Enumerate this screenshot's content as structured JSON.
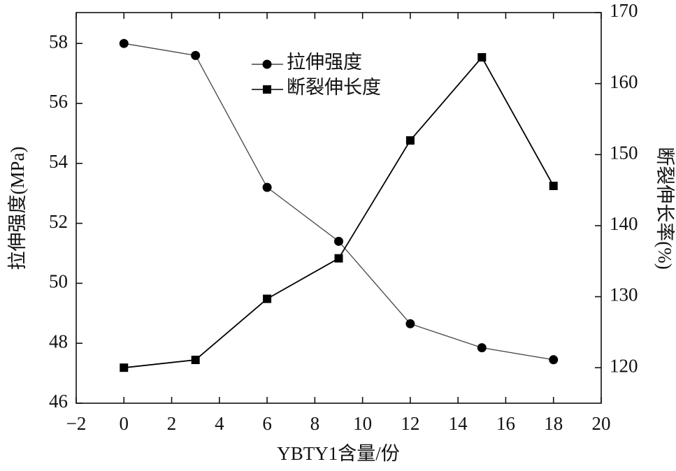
{
  "chart_data": {
    "type": "line",
    "x": [
      0,
      3,
      6,
      9,
      12,
      15,
      18
    ],
    "series": [
      {
        "name": "拉伸强度",
        "color": "#444444",
        "marker": "circle",
        "values": [
          58,
          57.6,
          53.2,
          51.4,
          48.65,
          47.85,
          47.45
        ]
      },
      {
        "name": "断裂伸长度",
        "color": "#000000",
        "marker": "square",
        "axis": "y2",
        "values": [
          120,
          121.1,
          129.7,
          135.4,
          152.0,
          163.7,
          145.6
        ]
      }
    ],
    "xlabel": "YBTY1含量/份",
    "ylabel": "拉伸强度(MPa)",
    "y2label": "断裂伸长率(%)",
    "xlim": [
      -2,
      20
    ],
    "xticks": [
      {
        "value": -2,
        "label": "−2"
      },
      0,
      2,
      4,
      6,
      8,
      10,
      12,
      14,
      16,
      18,
      20
    ],
    "ylim": [
      46,
      59.03
    ],
    "yticks": [
      46,
      48,
      50,
      52,
      54,
      56,
      58
    ],
    "y2lim": [
      115,
      170
    ],
    "y2ticks": [
      120,
      130,
      140,
      150,
      160,
      170
    ],
    "legend": "top"
  }
}
